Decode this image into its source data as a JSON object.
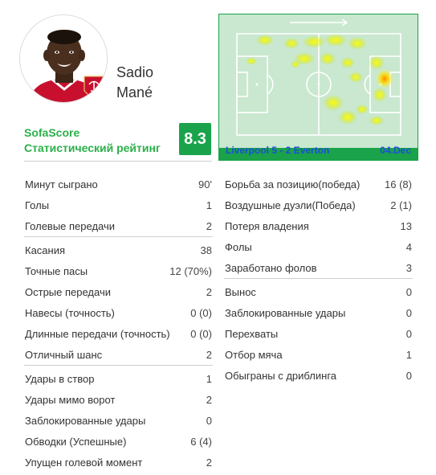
{
  "player": {
    "first_name": "Sadio",
    "last_name": "Mané"
  },
  "rating": {
    "brand": "SofaScore",
    "label": "Статистический рейтинг",
    "value": "8.3",
    "color": "#1aa34a"
  },
  "match": {
    "score_line": "Liverpool 5 - 2 Everton",
    "date": "04.Dec"
  },
  "heatmap": {
    "attack_direction": "right"
  },
  "stats_left": [
    [
      {
        "label": "Минут сыграно",
        "value": "90'"
      },
      {
        "label": "Голы",
        "value": "1"
      },
      {
        "label": "Голевые передачи",
        "value": "2"
      }
    ],
    [
      {
        "label": "Касания",
        "value": "38"
      },
      {
        "label": "Точные пасы",
        "value": "12 (70%)"
      },
      {
        "label": "Острые передачи",
        "value": "2"
      },
      {
        "label": "Навесы (точность)",
        "value": "0 (0)"
      },
      {
        "label": "Длинные передачи (точность)",
        "value": "0 (0)"
      },
      {
        "label": "Отличный шанс",
        "value": "2"
      }
    ],
    [
      {
        "label": "Удары в створ",
        "value": "1"
      },
      {
        "label": "Удары мимо ворот",
        "value": "2"
      },
      {
        "label": "Заблокированные удары",
        "value": "0"
      },
      {
        "label": "Обводки (Успешные)",
        "value": "6 (4)"
      },
      {
        "label": "Упущен голевой момент",
        "value": "2"
      }
    ]
  ],
  "stats_right": [
    [
      {
        "label": "Борьба за позицию(победа)",
        "value": "16 (8)"
      },
      {
        "label": "Воздушные дуэли(Победа)",
        "value": "2 (1)"
      },
      {
        "label": "Потеря владения",
        "value": "13"
      },
      {
        "label": "Фолы",
        "value": "4"
      },
      {
        "label": "Заработано фолов",
        "value": "3"
      }
    ],
    [
      {
        "label": "Вынос",
        "value": "0"
      },
      {
        "label": "Заблокированные удары",
        "value": "0"
      },
      {
        "label": "Перехваты",
        "value": "0"
      },
      {
        "label": "Отбор мяча",
        "value": "1"
      },
      {
        "label": "Обыграны с дриблинга",
        "value": "0"
      }
    ]
  ]
}
